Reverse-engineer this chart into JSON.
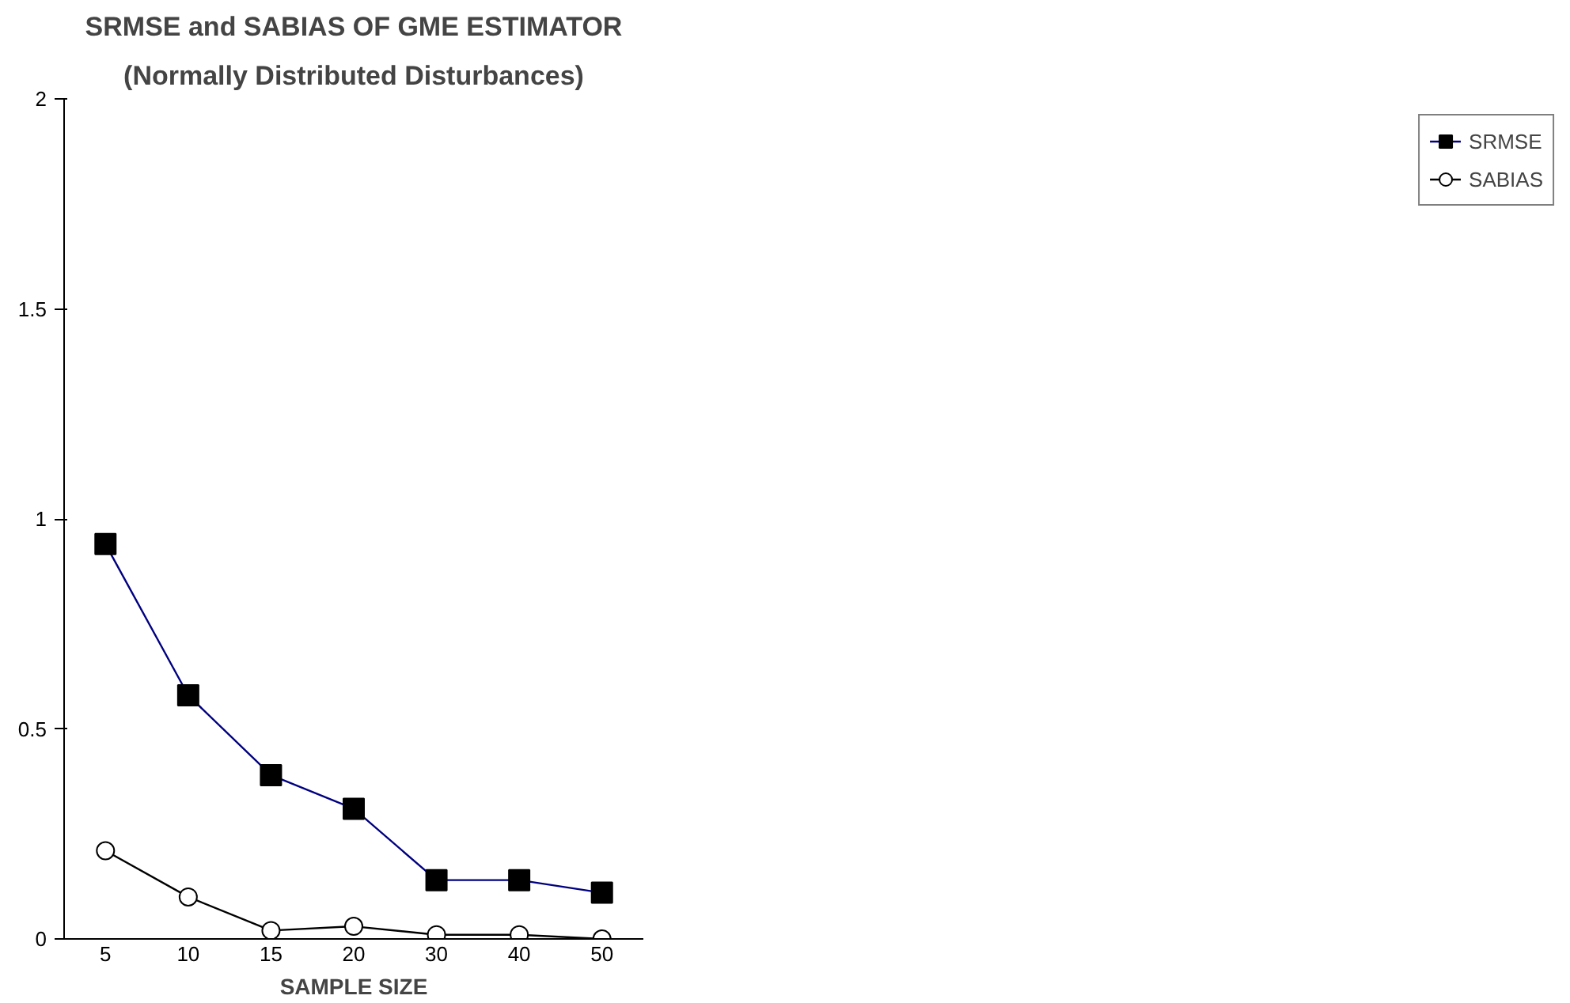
{
  "chart_data": {
    "type": "line",
    "title": "SRMSE and SABIAS OF GME ESTIMATOR",
    "subtitle": "(Normally Distributed Disturbances)",
    "xlabel": "SAMPLE SIZE",
    "categories": [
      "5",
      "10",
      "15",
      "20",
      "30",
      "40",
      "50"
    ],
    "series": [
      {
        "name": "SRMSE",
        "color": "#000080",
        "marker": "square",
        "values": [
          0.94,
          0.58,
          0.39,
          0.31,
          0.14,
          0.14,
          0.11
        ]
      },
      {
        "name": "SABIAS",
        "color": "#000000",
        "marker": "circle",
        "values": [
          0.21,
          0.1,
          0.02,
          0.03,
          0.01,
          0.01,
          0.0
        ]
      }
    ],
    "ylim": [
      0,
      2
    ],
    "yticks": [
      0,
      {
        "value": 0.5,
        "label": "0.5"
      },
      1,
      {
        "value": 1.5,
        "label": "1.5"
      },
      2
    ],
    "grid": false,
    "legend": "right"
  }
}
